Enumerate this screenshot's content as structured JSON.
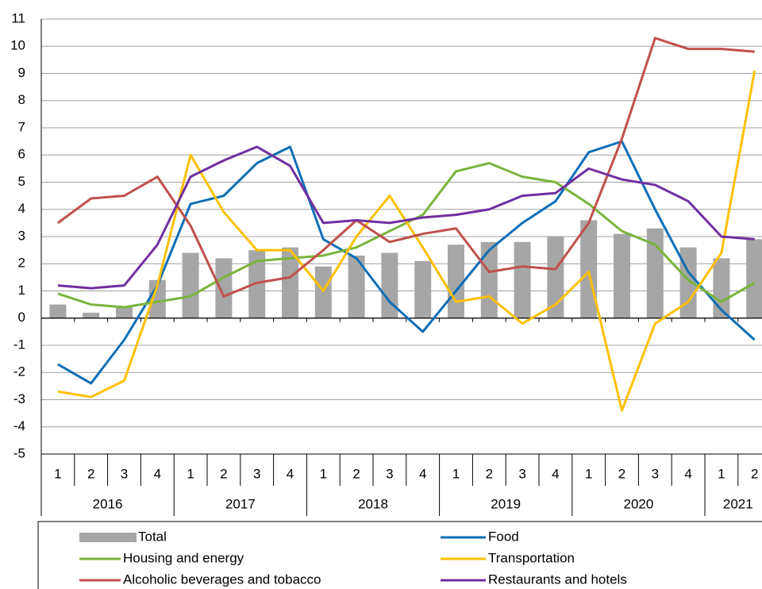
{
  "chart_data": {
    "type": "bar",
    "categories": [
      "1",
      "2",
      "3",
      "4",
      "1",
      "2",
      "3",
      "4",
      "1",
      "2",
      "3",
      "4",
      "1",
      "2",
      "3",
      "4",
      "1",
      "2",
      "3",
      "4",
      "1",
      "2"
    ],
    "groups": [
      "2016",
      "2017",
      "2018",
      "2019",
      "2020",
      "2021"
    ],
    "ylim": [
      -5,
      11
    ],
    "yticks": [
      -5,
      -4,
      -3,
      -2,
      -1,
      0,
      1,
      2,
      3,
      4,
      5,
      6,
      7,
      8,
      9,
      10,
      11
    ],
    "grid": true,
    "series": [
      {
        "name": "Total",
        "type": "bar",
        "color": "#a6a6a6",
        "values": [
          0.5,
          0.2,
          0.4,
          1.4,
          2.4,
          2.2,
          2.5,
          2.6,
          1.9,
          2.3,
          2.4,
          2.1,
          2.7,
          2.8,
          2.8,
          3.0,
          3.6,
          3.1,
          3.3,
          2.6,
          2.2,
          2.9
        ]
      },
      {
        "name": "Food",
        "type": "line",
        "color": "#0f6fb5",
        "values": [
          -1.7,
          -2.4,
          -0.8,
          1.2,
          4.2,
          4.5,
          5.7,
          6.3,
          2.9,
          2.2,
          0.6,
          -0.5,
          1.0,
          2.5,
          3.5,
          4.3,
          6.1,
          6.5,
          4.0,
          1.7,
          0.3,
          -0.8
        ]
      },
      {
        "name": "Housing and energy",
        "type": "line",
        "color": "#7ab43c",
        "values": [
          0.9,
          0.5,
          0.4,
          0.6,
          0.8,
          1.5,
          2.1,
          2.2,
          2.3,
          2.6,
          3.2,
          3.8,
          5.4,
          5.7,
          5.2,
          5.0,
          4.2,
          3.2,
          2.7,
          1.4,
          0.6,
          1.3
        ]
      },
      {
        "name": "Transportation",
        "type": "line",
        "color": "#ffc000",
        "values": [
          -2.7,
          -2.9,
          -2.3,
          1.2,
          6.0,
          3.9,
          2.5,
          2.5,
          1.0,
          3.0,
          4.5,
          2.6,
          0.6,
          0.8,
          -0.2,
          0.5,
          1.7,
          -3.4,
          -0.2,
          0.6,
          2.4,
          9.1
        ]
      },
      {
        "name": "Alcoholic beverages and tobacco",
        "type": "line",
        "color": "#c0504d",
        "values": [
          3.5,
          4.4,
          4.5,
          5.2,
          3.4,
          0.8,
          1.3,
          1.5,
          2.5,
          3.6,
          2.8,
          3.1,
          3.3,
          1.7,
          1.9,
          1.8,
          3.5,
          6.6,
          10.3,
          9.9,
          9.9,
          9.8
        ]
      },
      {
        "name": "Restaurants and hotels",
        "type": "line",
        "color": "#7030a0",
        "values": [
          1.2,
          1.1,
          1.2,
          2.7,
          5.2,
          5.8,
          6.3,
          5.6,
          3.5,
          3.6,
          3.5,
          3.7,
          3.8,
          4.0,
          4.5,
          4.6,
          5.5,
          5.1,
          4.9,
          4.3,
          3.0,
          2.9
        ]
      }
    ]
  }
}
